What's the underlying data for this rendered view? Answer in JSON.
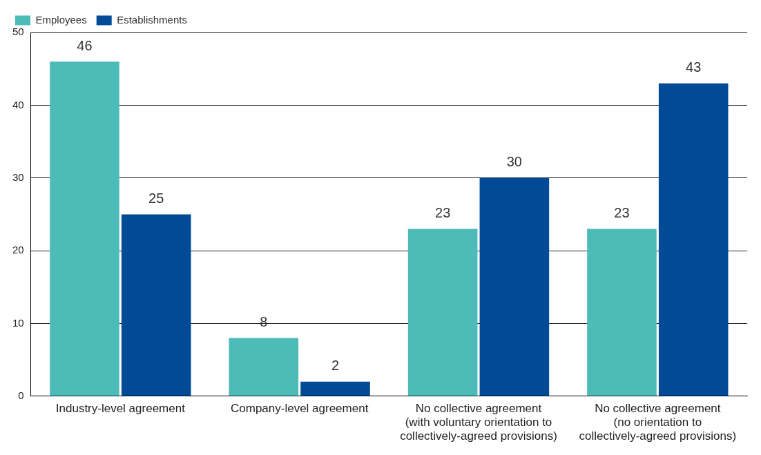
{
  "chart_data": {
    "type": "bar",
    "categories": [
      "Industry-level agreement",
      "Company-level agreement",
      "No collective agreement\n(with voluntary orientation to\ncollectively-agreed provisions)",
      "No collective agreement\n(no orientation to\ncollectively-agreed provisions)"
    ],
    "series": [
      {
        "name": "Employees",
        "color": "#4dbbb8",
        "values": [
          46,
          8,
          23,
          23
        ]
      },
      {
        "name": "Establishments",
        "color": "#004a96",
        "values": [
          25,
          2,
          30,
          43
        ]
      }
    ],
    "ylim": [
      0,
      50
    ],
    "yticks": [
      0,
      10,
      20,
      30,
      40,
      50
    ],
    "grid": "y",
    "legend": "top left",
    "data_labels": true
  }
}
